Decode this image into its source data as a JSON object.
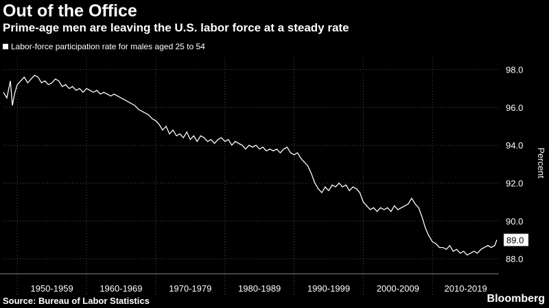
{
  "chart_data": {
    "type": "line",
    "title": "Out of the Office",
    "subtitle": "Prime-age men are leaving the U.S. labor force at a steady rate",
    "legend": [
      "Labor-force participation rate for males aged 25 to 54"
    ],
    "ylabel": "Percent",
    "source": "Source: Bureau of Labor Statistics",
    "brand": "Bloomberg",
    "last_value_label": "89.0",
    "ylim": [
      87.5,
      98.6
    ],
    "xlim": [
      1948,
      2019.6
    ],
    "y_ticks": [
      "98.0",
      "96.0",
      "94.0",
      "92.0",
      "90.0",
      "88.0"
    ],
    "y_tick_values": [
      98,
      96,
      94,
      92,
      90,
      88
    ],
    "x_ticks": [
      "1950-1959",
      "1960-1969",
      "1970-1979",
      "1980-1989",
      "1990-1999",
      "2000-2009",
      "2010-2019"
    ],
    "x_tick_ranges": [
      [
        1950,
        1960
      ],
      [
        1960,
        1970
      ],
      [
        1970,
        1980
      ],
      [
        1980,
        1990
      ],
      [
        1990,
        2000
      ],
      [
        2000,
        2010
      ],
      [
        2010,
        2020
      ]
    ],
    "legend_position": "top-left",
    "grid": true,
    "series": [
      {
        "name": "Labor-force participation rate for males aged 25 to 54",
        "color": "#ffffff",
        "x": [
          1948.0,
          1948.5,
          1949.0,
          1949.3,
          1949.6,
          1950.0,
          1950.5,
          1951.0,
          1951.5,
          1952.0,
          1952.5,
          1953.0,
          1953.5,
          1954.0,
          1954.5,
          1955.0,
          1955.5,
          1956.0,
          1956.5,
          1957.0,
          1957.5,
          1958.0,
          1958.5,
          1959.0,
          1959.5,
          1960.0,
          1960.5,
          1961.0,
          1961.5,
          1962.0,
          1962.5,
          1963.0,
          1963.5,
          1964.0,
          1964.5,
          1965.0,
          1965.5,
          1966.0,
          1966.5,
          1967.0,
          1967.5,
          1968.0,
          1968.5,
          1969.0,
          1969.5,
          1970.0,
          1970.5,
          1971.0,
          1971.5,
          1972.0,
          1972.5,
          1973.0,
          1973.5,
          1974.0,
          1974.5,
          1975.0,
          1975.5,
          1976.0,
          1976.5,
          1977.0,
          1977.5,
          1978.0,
          1978.5,
          1979.0,
          1979.5,
          1980.0,
          1980.5,
          1981.0,
          1981.5,
          1982.0,
          1982.5,
          1983.0,
          1983.5,
          1984.0,
          1984.5,
          1985.0,
          1985.5,
          1986.0,
          1986.5,
          1987.0,
          1987.5,
          1988.0,
          1988.5,
          1989.0,
          1989.5,
          1990.0,
          1990.5,
          1991.0,
          1991.5,
          1992.0,
          1992.5,
          1993.0,
          1993.5,
          1994.0,
          1994.5,
          1995.0,
          1995.5,
          1996.0,
          1996.5,
          1997.0,
          1997.5,
          1998.0,
          1998.5,
          1999.0,
          1999.5,
          2000.0,
          2000.5,
          2001.0,
          2001.5,
          2002.0,
          2002.5,
          2003.0,
          2003.5,
          2004.0,
          2004.5,
          2005.0,
          2005.5,
          2006.0,
          2006.5,
          2007.0,
          2007.5,
          2008.0,
          2008.5,
          2009.0,
          2009.5,
          2010.0,
          2010.5,
          2011.0,
          2011.5,
          2012.0,
          2012.5,
          2013.0,
          2013.5,
          2014.0,
          2014.5,
          2015.0,
          2015.5,
          2016.0,
          2016.5,
          2017.0,
          2017.5,
          2018.0,
          2018.5,
          2019.0,
          2019.3
        ],
        "y": [
          96.8,
          96.5,
          97.4,
          96.1,
          96.7,
          97.2,
          97.4,
          97.6,
          97.3,
          97.5,
          97.7,
          97.6,
          97.3,
          97.4,
          97.2,
          97.3,
          97.5,
          97.4,
          97.1,
          97.2,
          97.0,
          97.1,
          96.9,
          97.0,
          96.8,
          97.0,
          96.9,
          96.8,
          96.9,
          96.7,
          96.8,
          96.7,
          96.6,
          96.7,
          96.6,
          96.5,
          96.4,
          96.3,
          96.2,
          96.1,
          95.9,
          95.8,
          95.7,
          95.6,
          95.4,
          95.3,
          95.1,
          94.8,
          95.0,
          94.6,
          94.8,
          94.5,
          94.6,
          94.4,
          94.7,
          94.3,
          94.5,
          94.2,
          94.5,
          94.4,
          94.2,
          94.3,
          94.1,
          94.3,
          94.4,
          94.2,
          94.3,
          94.0,
          94.2,
          94.1,
          94.0,
          93.8,
          94.0,
          93.9,
          94.0,
          93.8,
          93.9,
          93.7,
          93.8,
          93.7,
          93.8,
          93.6,
          93.8,
          93.9,
          93.6,
          93.5,
          93.6,
          93.3,
          93.1,
          92.9,
          92.5,
          92.0,
          91.7,
          91.5,
          91.8,
          91.6,
          91.9,
          91.8,
          92.0,
          91.8,
          91.9,
          91.6,
          91.8,
          91.7,
          91.5,
          91.0,
          90.8,
          90.6,
          90.7,
          90.5,
          90.7,
          90.6,
          90.7,
          90.5,
          90.8,
          90.6,
          90.7,
          90.8,
          90.9,
          91.2,
          90.9,
          90.7,
          90.2,
          89.6,
          89.2,
          88.9,
          88.8,
          88.6,
          88.6,
          88.5,
          88.7,
          88.4,
          88.5,
          88.3,
          88.4,
          88.2,
          88.3,
          88.4,
          88.3,
          88.5,
          88.6,
          88.7,
          88.6,
          88.7,
          89.0
        ]
      }
    ]
  }
}
